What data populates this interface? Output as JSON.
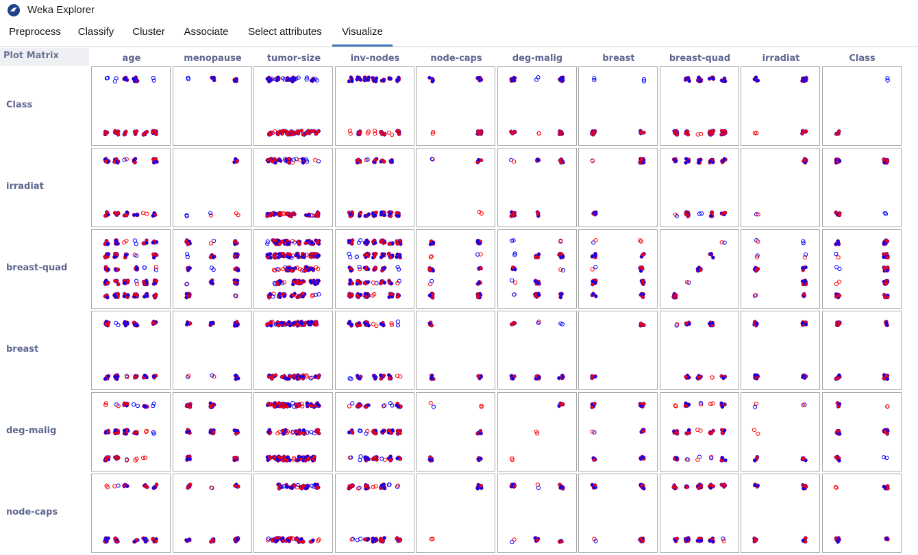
{
  "window": {
    "title": "Weka Explorer",
    "icon": "weka-bird-icon"
  },
  "tabs": [
    {
      "label": "Preprocess",
      "active": false
    },
    {
      "label": "Classify",
      "active": false
    },
    {
      "label": "Cluster",
      "active": false
    },
    {
      "label": "Associate",
      "active": false
    },
    {
      "label": "Select attributes",
      "active": false
    },
    {
      "label": "Visualize",
      "active": true
    }
  ],
  "plot_matrix": {
    "label": "Plot Matrix",
    "columns": [
      "age",
      "menopause",
      "tumor-size",
      "inv-nodes",
      "node-caps",
      "deg-malig",
      "breast",
      "breast-quad",
      "irradiat",
      "Class"
    ],
    "rows": [
      "Class",
      "irradiat",
      "breast-quad",
      "breast",
      "deg-malig",
      "node-caps"
    ],
    "colors": {
      "class_a": "#ff0000",
      "class_b": "#0000ff",
      "cell_border": "#a9a9a9",
      "header_text": "#5f6790"
    }
  }
}
